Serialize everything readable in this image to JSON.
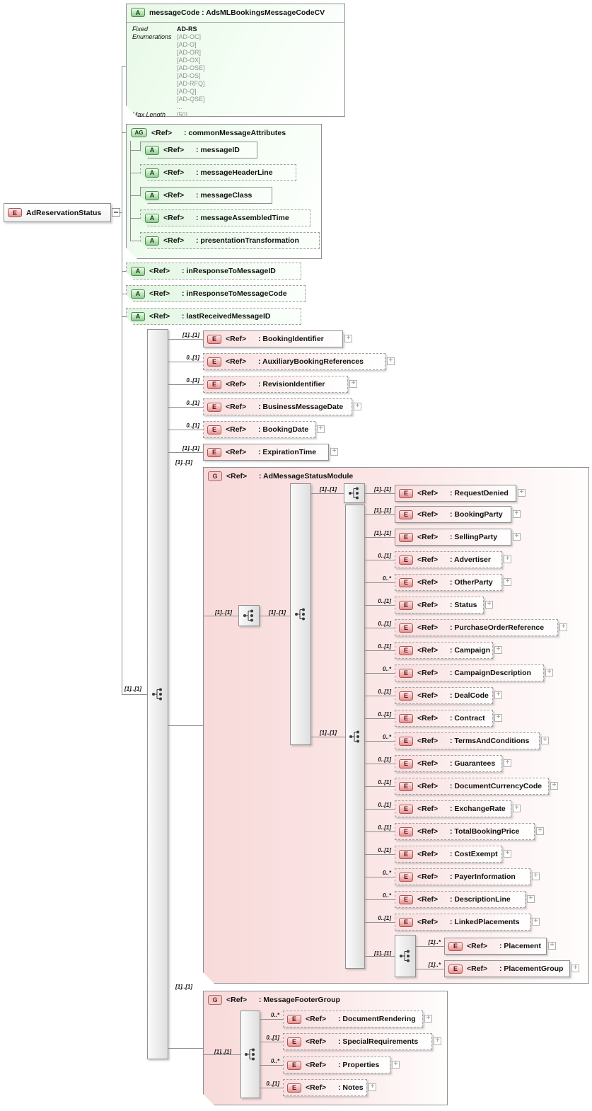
{
  "diagram": {
    "root": {
      "kind": "E",
      "name": "AdReservationStatus"
    },
    "messageCode": {
      "kind": "A",
      "title": "messageCode : AdsMLBookingsMessageCodeCV",
      "fixed_label": "Fixed",
      "fixed_value": "AD-RS",
      "enumerations_label": "Enumerations",
      "enumerations": [
        "[AD-OC]",
        "[AD-O]",
        "[AD-OR]",
        "[AD-OX]",
        "[AD-OSE]",
        "[AD-OS]",
        "[AD-RFQ]",
        "[AD-Q]",
        "[AD-QSE]",
        "..."
      ],
      "max_length_label": "Max Length",
      "max_length_value": "[50]"
    },
    "commonMessageAttributes": {
      "kind": "AG",
      "ref": "<Ref>",
      "label": ": commonMessageAttributes",
      "attributes": [
        {
          "ref": "<Ref>",
          "label": ": messageID",
          "optional": false
        },
        {
          "ref": "<Ref>",
          "label": ": messageHeaderLine",
          "optional": true
        },
        {
          "ref": "<Ref>",
          "label": ": messageClass",
          "optional": false
        },
        {
          "ref": "<Ref>",
          "label": ": messageAssembledTime",
          "optional": true
        },
        {
          "ref": "<Ref>",
          "label": ": presentationTransformation",
          "optional": true
        }
      ]
    },
    "attributes": [
      {
        "ref": "<Ref>",
        "label": ": inResponseToMessageID",
        "optional": true
      },
      {
        "ref": "<Ref>",
        "label": ": inResponseToMessageCode",
        "optional": true
      },
      {
        "ref": "<Ref>",
        "label": ": lastReceivedMessageID",
        "optional": true
      }
    ],
    "sequence_cardinality": "[1]..[1]",
    "elements": [
      {
        "ref": "<Ref>",
        "label": ": BookingIdentifier",
        "cardinality": "[1]..[1]",
        "optional": false
      },
      {
        "ref": "<Ref>",
        "label": ": AuxiliaryBookingReferences",
        "cardinality": "0..[1]",
        "optional": true
      },
      {
        "ref": "<Ref>",
        "label": ": RevisionIdentifier",
        "cardinality": "0..[1]",
        "optional": true
      },
      {
        "ref": "<Ref>",
        "label": ": BusinessMessageDate",
        "cardinality": "0..[1]",
        "optional": true
      },
      {
        "ref": "<Ref>",
        "label": ": BookingDate",
        "cardinality": "0..[1]",
        "optional": true
      },
      {
        "ref": "<Ref>",
        "label": ": ExpirationTime",
        "cardinality": "[1]..[1]",
        "optional": false
      }
    ],
    "adMessageStatusModule": {
      "kind": "G",
      "ref": "<Ref>",
      "label": ": AdMessageStatusModule",
      "cardinality": "[1]..[1]",
      "seq1_cardinality": "[1]..[1]",
      "seq2_cardinality": "[1]..[1]",
      "branch1_cardinality": "[1]..[1]",
      "requestDenied": {
        "ref": "<Ref>",
        "label": ": RequestDenied",
        "cardinality": "[1]..[1]",
        "optional": false
      },
      "branch2_cardinality": "[1]..[1]",
      "elements": [
        {
          "ref": "<Ref>",
          "label": ": BookingParty",
          "cardinality": "[1]..[1]",
          "optional": false
        },
        {
          "ref": "<Ref>",
          "label": ": SellingParty",
          "cardinality": "[1]..[1]",
          "optional": false
        },
        {
          "ref": "<Ref>",
          "label": ": Advertiser",
          "cardinality": "0..[1]",
          "optional": true
        },
        {
          "ref": "<Ref>",
          "label": ": OtherParty",
          "cardinality": "0..*",
          "optional": true
        },
        {
          "ref": "<Ref>",
          "label": ": Status",
          "cardinality": "0..[1]",
          "optional": true
        },
        {
          "ref": "<Ref>",
          "label": ": PurchaseOrderReference",
          "cardinality": "0..[1]",
          "optional": true
        },
        {
          "ref": "<Ref>",
          "label": ": Campaign",
          "cardinality": "0..[1]",
          "optional": true
        },
        {
          "ref": "<Ref>",
          "label": ": CampaignDescription",
          "cardinality": "0..*",
          "optional": true
        },
        {
          "ref": "<Ref>",
          "label": ": DealCode",
          "cardinality": "0..[1]",
          "optional": true
        },
        {
          "ref": "<Ref>",
          "label": ": Contract",
          "cardinality": "0..[1]",
          "optional": true
        },
        {
          "ref": "<Ref>",
          "label": ": TermsAndConditions",
          "cardinality": "0..*",
          "optional": true
        },
        {
          "ref": "<Ref>",
          "label": ": Guarantees",
          "cardinality": "0..[1]",
          "optional": true
        },
        {
          "ref": "<Ref>",
          "label": ": DocumentCurrencyCode",
          "cardinality": "0..[1]",
          "optional": true
        },
        {
          "ref": "<Ref>",
          "label": ": ExchangeRate",
          "cardinality": "0..[1]",
          "optional": true
        },
        {
          "ref": "<Ref>",
          "label": ": TotalBookingPrice",
          "cardinality": "0..[1]",
          "optional": true
        },
        {
          "ref": "<Ref>",
          "label": ": CostExempt",
          "cardinality": "0..[1]",
          "optional": true
        },
        {
          "ref": "<Ref>",
          "label": ": PayerInformation",
          "cardinality": "0..*",
          "optional": true
        },
        {
          "ref": "<Ref>",
          "label": ": DescriptionLine",
          "cardinality": "0..*",
          "optional": true
        },
        {
          "ref": "<Ref>",
          "label": ": LinkedPlacements",
          "cardinality": "0..[1]",
          "optional": true
        }
      ],
      "choice": {
        "cardinality": "[1]..[1]",
        "options": [
          {
            "ref": "<Ref>",
            "label": ": Placement",
            "cardinality": "[1]..*",
            "optional": false
          },
          {
            "ref": "<Ref>",
            "label": ": PlacementGroup",
            "cardinality": "[1]..*",
            "optional": false
          }
        ]
      }
    },
    "messageFooterGroup": {
      "kind": "G",
      "ref": "<Ref>",
      "label": ": MessageFooterGroup",
      "cardinality": "[1]..[1]",
      "seq_cardinality": "[1]..[1]",
      "elements": [
        {
          "ref": "<Ref>",
          "label": ": DocumentRendering",
          "cardinality": "0..*",
          "optional": true
        },
        {
          "ref": "<Ref>",
          "label": ": SpecialRequirements",
          "cardinality": "0..[1]",
          "optional": true
        },
        {
          "ref": "<Ref>",
          "label": ": Properties",
          "cardinality": "0..*",
          "optional": true
        },
        {
          "ref": "<Ref>",
          "label": ": Notes",
          "cardinality": "0..[1]",
          "optional": true
        }
      ]
    },
    "colors": {
      "attribute_fill": "#def4de",
      "element_fill": "#f8dede",
      "group_fill": "#f8dada",
      "connector": "#8f8f8f"
    }
  }
}
